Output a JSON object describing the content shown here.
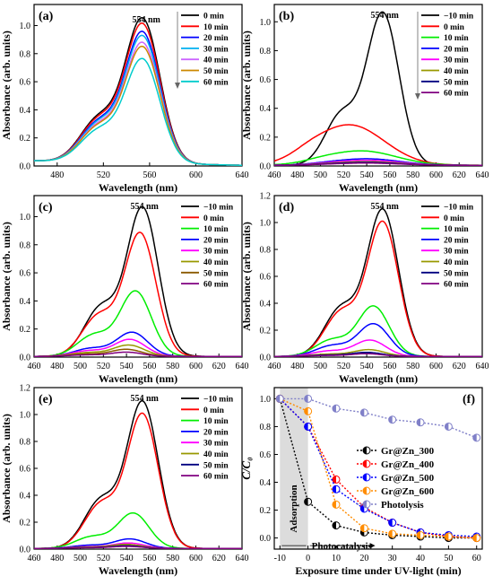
{
  "figure": {
    "common": {
      "xlabel": "Wavelength (nm)",
      "ylabel": "Absorbance (arb. units)",
      "peak_label": "554 nm"
    }
  },
  "chart_data": [
    {
      "panel": "(a)",
      "type": "line",
      "xlabel": "Wavelength (nm)",
      "ylabel": "Absorbance (arb. units)",
      "xlim": [
        460,
        640
      ],
      "ylim": [
        0,
        1.15
      ],
      "xticks": [
        480,
        520,
        560,
        600,
        640
      ],
      "yticks": [
        0.0,
        0.2,
        0.4,
        0.6,
        0.8,
        1.0
      ],
      "annotation": "554 nm",
      "legend_position": "top-right",
      "legend_arrow": true,
      "shoulder": "broad",
      "series": [
        {
          "name": "0 min",
          "color": "#000000",
          "peak": 1.07,
          "base": 0.04
        },
        {
          "name": "10 min",
          "color": "#ff0000",
          "peak": 1.03,
          "base": 0.04
        },
        {
          "name": "20 min",
          "color": "#0000ff",
          "peak": 0.97,
          "base": 0.04
        },
        {
          "name": "30 min",
          "color": "#00b0f0",
          "peak": 0.94,
          "base": 0.04
        },
        {
          "name": "40 min",
          "color": "#cc66ff",
          "peak": 0.89,
          "base": 0.04
        },
        {
          "name": "50 min",
          "color": "#cc8800",
          "peak": 0.86,
          "base": 0.04
        },
        {
          "name": "60 min",
          "color": "#00cccc",
          "peak": 0.77,
          "base": 0.04
        }
      ]
    },
    {
      "panel": "(b)",
      "type": "line",
      "xlabel": "Wavelength (nm)",
      "ylabel": "Absorbance (arb. units)",
      "xlim": [
        460,
        640
      ],
      "ylim": [
        0,
        1.12
      ],
      "xticks": [
        460,
        480,
        500,
        520,
        540,
        560,
        580,
        600,
        620,
        640
      ],
      "yticks": [
        0.0,
        0.2,
        0.4,
        0.6,
        0.8,
        1.0
      ],
      "annotation": "554 nm",
      "legend_position": "top-right",
      "legend_arrow": true,
      "shoulder": "standard",
      "series": [
        {
          "name": "−10 min",
          "color": "#000000",
          "peak": 1.05,
          "center": 554,
          "width": 14
        },
        {
          "name": "0 min",
          "color": "#ff0000",
          "peak": 0.28,
          "center": 525,
          "width": 30
        },
        {
          "name": "10 min",
          "color": "#00ee00",
          "peak": 0.1,
          "center": 535,
          "width": 30
        },
        {
          "name": "20 min",
          "color": "#0000ff",
          "peak": 0.045,
          "center": 540,
          "width": 28
        },
        {
          "name": "30 min",
          "color": "#ff00ff",
          "peak": 0.035,
          "center": 540,
          "width": 28
        },
        {
          "name": "40 min",
          "color": "#999900",
          "peak": 0.025,
          "center": 540,
          "width": 28
        },
        {
          "name": "50 min",
          "color": "#000080",
          "peak": 0.02,
          "center": 540,
          "width": 28
        },
        {
          "name": "60 min",
          "color": "#800080",
          "peak": 0.015,
          "center": 540,
          "width": 28
        }
      ]
    },
    {
      "panel": "(c)",
      "type": "line",
      "xlabel": "Wavelength (nm)",
      "ylabel": "Absorbance (arb. units)",
      "xlim": [
        460,
        640
      ],
      "ylim": [
        0,
        1.15
      ],
      "xticks": [
        460,
        480,
        500,
        520,
        540,
        560,
        580,
        600,
        620,
        640
      ],
      "yticks": [
        0.0,
        0.2,
        0.4,
        0.6,
        0.8,
        1.0
      ],
      "annotation": "554 nm",
      "legend_position": "top-right",
      "legend_arrow": false,
      "shoulder": "standard",
      "series": [
        {
          "name": "−10 min",
          "color": "#000000",
          "peak": 1.05,
          "center": 554
        },
        {
          "name": "0 min",
          "color": "#ff0000",
          "peak": 0.87,
          "center": 552
        },
        {
          "name": "10 min",
          "color": "#00ee00",
          "peak": 0.46,
          "center": 548
        },
        {
          "name": "20 min",
          "color": "#0000ff",
          "peak": 0.17,
          "center": 545
        },
        {
          "name": "30 min",
          "color": "#ff00ff",
          "peak": 0.12,
          "center": 543
        },
        {
          "name": "40 min",
          "color": "#999900",
          "peak": 0.08,
          "center": 542
        },
        {
          "name": "50 min",
          "color": "#8b5a00",
          "peak": 0.05,
          "center": 540
        },
        {
          "name": "60 min",
          "color": "#800080",
          "peak": 0.03,
          "center": 540
        }
      ]
    },
    {
      "panel": "(d)",
      "type": "line",
      "xlabel": "Wavelength (nm)",
      "ylabel": "Absorbance (arb. units)",
      "xlim": [
        460,
        640
      ],
      "ylim": [
        0,
        1.2
      ],
      "xticks": [
        460,
        480,
        500,
        520,
        540,
        560,
        580,
        600,
        620,
        640
      ],
      "yticks": [
        0.0,
        0.2,
        0.4,
        0.6,
        0.8,
        1.0,
        1.2
      ],
      "annotation": "554 nm",
      "legend_position": "top-right",
      "legend_arrow": false,
      "shoulder": "standard",
      "series": [
        {
          "name": "−10 min",
          "color": "#000000",
          "peak": 1.08,
          "center": 554
        },
        {
          "name": "0 min",
          "color": "#ff0000",
          "peak": 0.99,
          "center": 554
        },
        {
          "name": "10 min",
          "color": "#00ee00",
          "peak": 0.37,
          "center": 546
        },
        {
          "name": "20 min",
          "color": "#0000ff",
          "peak": 0.24,
          "center": 546
        },
        {
          "name": "30 min",
          "color": "#ff00ff",
          "peak": 0.12,
          "center": 543
        },
        {
          "name": "40 min",
          "color": "#999900",
          "peak": 0.05,
          "center": 542
        },
        {
          "name": "50 min",
          "color": "#000080",
          "peak": 0.03,
          "center": 540
        },
        {
          "name": "60 min",
          "color": "#800080",
          "peak": 0.02,
          "center": 540
        }
      ]
    },
    {
      "panel": "(e)",
      "type": "line",
      "xlabel": "Wavelength (nm)",
      "ylabel": "Absorbance (arb. units)",
      "xlim": [
        460,
        640
      ],
      "ylim": [
        0,
        1.2
      ],
      "xticks": [
        460,
        480,
        500,
        520,
        540,
        560,
        580,
        600,
        620,
        640
      ],
      "yticks": [
        0.0,
        0.2,
        0.4,
        0.6,
        0.8,
        1.0,
        1.2
      ],
      "annotation": "554 nm",
      "legend_position": "top-right",
      "legend_arrow": false,
      "shoulder": "standard",
      "series": [
        {
          "name": "−10 min",
          "color": "#000000",
          "peak": 1.08,
          "center": 554
        },
        {
          "name": "0 min",
          "color": "#ff0000",
          "peak": 0.99,
          "center": 554
        },
        {
          "name": "10 min",
          "color": "#00ee00",
          "peak": 0.26,
          "center": 546
        },
        {
          "name": "20 min",
          "color": "#0000ff",
          "peak": 0.07,
          "center": 543
        },
        {
          "name": "30 min",
          "color": "#ff00ff",
          "peak": 0.04,
          "center": 542
        },
        {
          "name": "40 min",
          "color": "#999900",
          "peak": 0.03,
          "center": 540
        },
        {
          "name": "50 min",
          "color": "#000080",
          "peak": 0.02,
          "center": 540
        },
        {
          "name": "60 min",
          "color": "#800080",
          "peak": 0.015,
          "center": 540
        }
      ]
    },
    {
      "panel": "(f)",
      "type": "scatter",
      "xlabel": "Exposure time under UV-light (min)",
      "ylabel": "C/C₀",
      "xlim": [
        -12,
        62
      ],
      "ylim": [
        -0.08,
        1.08
      ],
      "xticks": [
        -10,
        0,
        10,
        20,
        30,
        40,
        50,
        60
      ],
      "yticks": [
        0.0,
        0.2,
        0.4,
        0.6,
        0.8,
        1.0
      ],
      "legend_position": "center-right",
      "shaded_region": {
        "from": -10,
        "to": 0,
        "label": "Adsorption"
      },
      "region_label": "Photocatalysis",
      "x": [
        -10,
        0,
        10,
        20,
        30,
        40,
        50,
        60
      ],
      "series": [
        {
          "name": "Gr@Zn_300",
          "color": "#000000",
          "values": [
            1.0,
            0.26,
            0.09,
            0.04,
            0.02,
            0.01,
            0.0,
            0.0
          ]
        },
        {
          "name": "Gr@Zn_400",
          "color": "#ff0000",
          "values": [
            1.0,
            0.8,
            0.42,
            0.22,
            0.11,
            0.04,
            0.01,
            0.0
          ]
        },
        {
          "name": "Gr@Zn_500",
          "color": "#0000ff",
          "values": [
            1.0,
            0.8,
            0.35,
            0.21,
            0.11,
            0.04,
            0.02,
            0.01
          ]
        },
        {
          "name": "Gr@Zn_600",
          "color": "#ff8c00",
          "values": [
            1.0,
            0.91,
            0.24,
            0.07,
            0.03,
            0.02,
            0.01,
            0.0
          ]
        },
        {
          "name": "Photolysis",
          "color": "#8080c8",
          "values": [
            1.0,
            1.0,
            0.93,
            0.9,
            0.85,
            0.83,
            0.8,
            0.72
          ]
        }
      ]
    }
  ]
}
